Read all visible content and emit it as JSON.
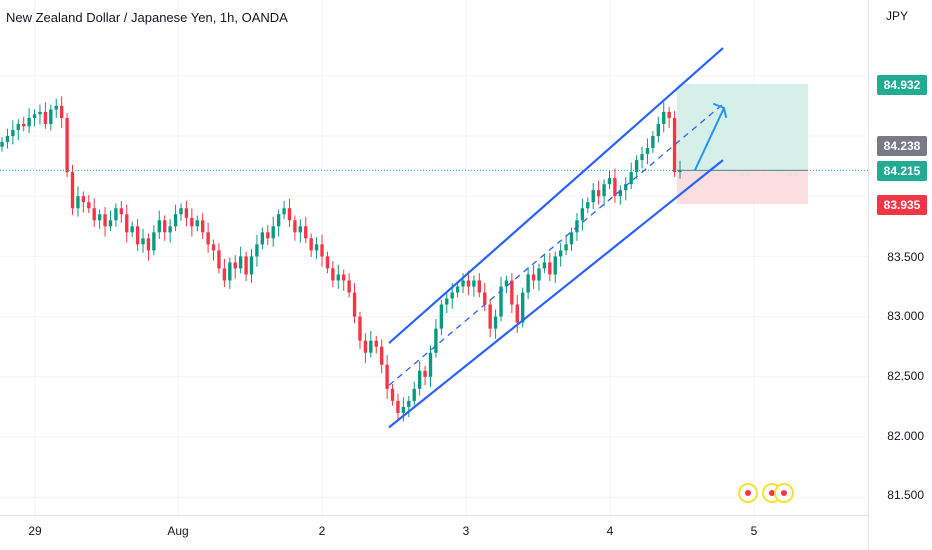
{
  "header": {
    "title": "New Zealand Dollar / Japanese Yen, 1h, OANDA",
    "currency": "JPY"
  },
  "chart_data": {
    "type": "candlestick",
    "symbol": "NZDJPY",
    "timeframe": "1h",
    "x_labels": [
      "29",
      "Aug",
      "2",
      "3",
      "4",
      "5"
    ],
    "y_ticks": [
      "81.500",
      "82.000",
      "82.500",
      "83.000",
      "83.500"
    ],
    "ylim": [
      81.45,
      85.6
    ],
    "price_tags": {
      "target": {
        "value": "84.932",
        "color": "#22ab94"
      },
      "last": {
        "value": "84.238",
        "color": "#787b86"
      },
      "entry": {
        "value": "84.215",
        "color": "#22ab94"
      },
      "stop": {
        "value": "83.935",
        "color": "#f23645"
      }
    },
    "colors": {
      "up": "#089981",
      "down": "#f23645",
      "channel": "#2962ff",
      "profit_zone": "#d6efe9",
      "loss_zone": "#fcdde0"
    },
    "candles_close_path": [
      84.45,
      84.5,
      84.55,
      84.6,
      84.58,
      84.65,
      84.68,
      84.7,
      84.6,
      84.72,
      84.75,
      84.65,
      84.2,
      83.9,
      84.0,
      83.95,
      83.9,
      83.8,
      83.85,
      83.75,
      83.8,
      83.9,
      83.85,
      83.7,
      83.75,
      83.6,
      83.65,
      83.55,
      83.7,
      83.8,
      83.7,
      83.75,
      83.85,
      83.9,
      83.82,
      83.75,
      83.8,
      83.7,
      83.6,
      83.55,
      83.4,
      83.3,
      83.45,
      83.4,
      83.5,
      83.35,
      83.5,
      83.6,
      83.7,
      83.65,
      83.75,
      83.85,
      83.9,
      83.8,
      83.7,
      83.75,
      83.65,
      83.55,
      83.6,
      83.5,
      83.4,
      83.3,
      83.35,
      83.3,
      83.2,
      83.0,
      82.8,
      82.7,
      82.8,
      82.75,
      82.6,
      82.4,
      82.3,
      82.2,
      82.25,
      82.3,
      82.4,
      82.55,
      82.5,
      82.7,
      82.9,
      83.1,
      83.15,
      83.2,
      83.25,
      83.3,
      83.25,
      83.3,
      83.2,
      83.1,
      82.9,
      83.0,
      83.25,
      83.3,
      83.1,
      82.95,
      83.2,
      83.35,
      83.3,
      83.4,
      83.45,
      83.35,
      83.5,
      83.55,
      83.6,
      83.7,
      83.8,
      83.9,
      83.95,
      84.05,
      84.0,
      84.1,
      84.15,
      84.0,
      84.05,
      84.1,
      84.2,
      84.3,
      84.35,
      84.4,
      84.5,
      84.6,
      84.7,
      84.65,
      84.2,
      84.215
    ],
    "channel_upper": [
      [
        82.78,
        0
      ],
      [
        85.23,
        1
      ]
    ],
    "channel_lower": [
      [
        82.08,
        0
      ],
      [
        84.3,
        1
      ]
    ],
    "events": [
      "dividend",
      "dividend",
      "dividend"
    ]
  }
}
